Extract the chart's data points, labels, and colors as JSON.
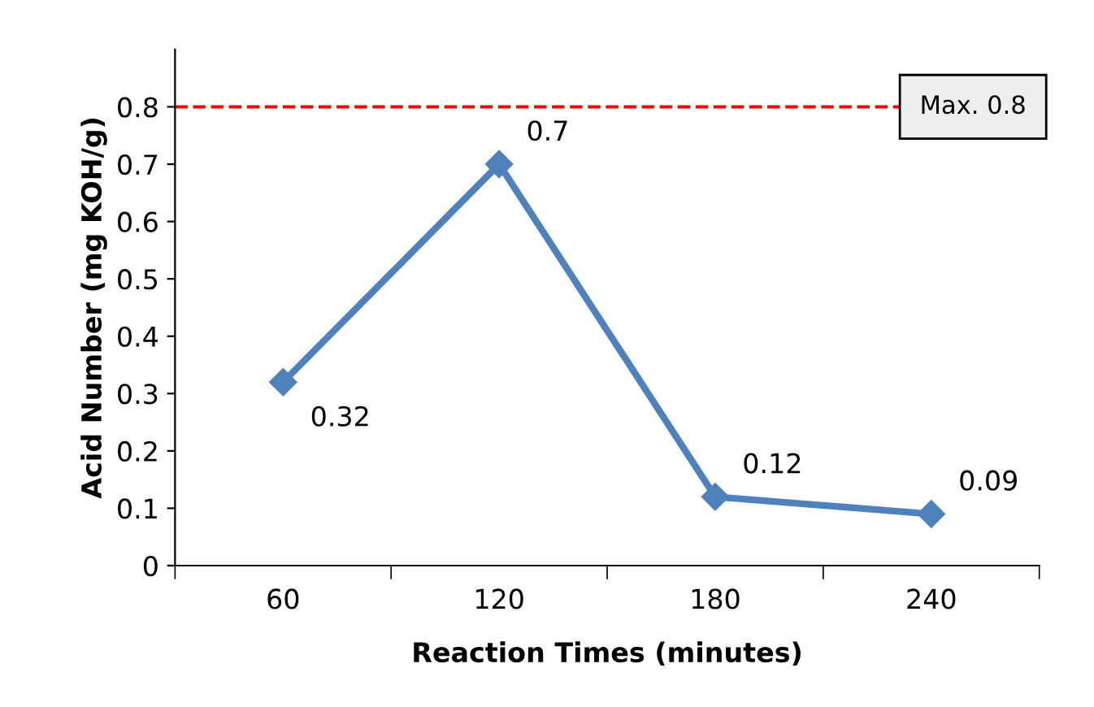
{
  "chart_data": {
    "type": "line",
    "xlabel": "Reaction Times (minutes)",
    "ylabel": "Acid Number (mg KOH/g)",
    "categories": [
      "60",
      "120",
      "180",
      "240"
    ],
    "series": [
      {
        "color": "#4f81bd",
        "values": [
          0.32,
          0.7,
          0.12,
          0.09
        ]
      }
    ],
    "ylim": [
      0,
      0.9
    ],
    "yticks": [
      0,
      0.1,
      0.2,
      0.3,
      0.4,
      0.5,
      0.6,
      0.7,
      0.8
    ],
    "ref_lines": [
      {
        "axis": "y",
        "value": 0.8,
        "label": "Max. 0.8",
        "color": "#ff0000",
        "line_style": "dashed"
      }
    ],
    "data_labels": true,
    "marker": "diamond",
    "line_style": "solid",
    "grid": false,
    "legend": false
  }
}
